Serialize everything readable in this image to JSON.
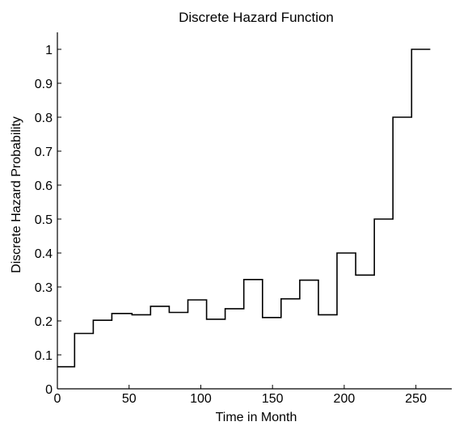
{
  "chart_data": {
    "type": "line",
    "step": true,
    "title": "Discrete Hazard Function",
    "xlabel": "Time in Month",
    "ylabel": "Discrete Hazard Probability",
    "xlim": [
      0,
      275
    ],
    "ylim": [
      0,
      1.05
    ],
    "xticks": [
      0,
      50,
      100,
      150,
      200,
      250
    ],
    "xtick_labels": [
      "0",
      "50",
      "100",
      "150",
      "200",
      "250"
    ],
    "yticks": [
      0,
      0.1,
      0.2,
      0.3,
      0.4,
      0.5,
      0.6,
      0.7,
      0.8,
      0.9,
      1
    ],
    "ytick_labels": [
      "0",
      "0.1",
      "0.2",
      "0.3",
      "0.4",
      "0.5",
      "0.6",
      "0.7",
      "0.8",
      "0.9",
      "1"
    ],
    "grid": false,
    "series": [
      {
        "color": "#000000",
        "points": [
          [
            0,
            0.065
          ],
          [
            12,
            0.065
          ],
          [
            12,
            0.163
          ],
          [
            25,
            0.163
          ],
          [
            25,
            0.202
          ],
          [
            38,
            0.202
          ],
          [
            38,
            0.222
          ],
          [
            52,
            0.222
          ],
          [
            52,
            0.218
          ],
          [
            65,
            0.218
          ],
          [
            65,
            0.243
          ],
          [
            78,
            0.243
          ],
          [
            78,
            0.225
          ],
          [
            91,
            0.225
          ],
          [
            91,
            0.262
          ],
          [
            104,
            0.262
          ],
          [
            104,
            0.205
          ],
          [
            117,
            0.205
          ],
          [
            117,
            0.236
          ],
          [
            130,
            0.236
          ],
          [
            130,
            0.322
          ],
          [
            143,
            0.322
          ],
          [
            143,
            0.21
          ],
          [
            156,
            0.21
          ],
          [
            156,
            0.265
          ],
          [
            169,
            0.265
          ],
          [
            169,
            0.32
          ],
          [
            182,
            0.32
          ],
          [
            182,
            0.218
          ],
          [
            195,
            0.218
          ],
          [
            195,
            0.4
          ],
          [
            208,
            0.4
          ],
          [
            208,
            0.335
          ],
          [
            221,
            0.335
          ],
          [
            221,
            0.5
          ],
          [
            234,
            0.5
          ],
          [
            234,
            0.8
          ],
          [
            247,
            0.8
          ],
          [
            247,
            1.0
          ],
          [
            260,
            1.0
          ]
        ]
      }
    ]
  }
}
